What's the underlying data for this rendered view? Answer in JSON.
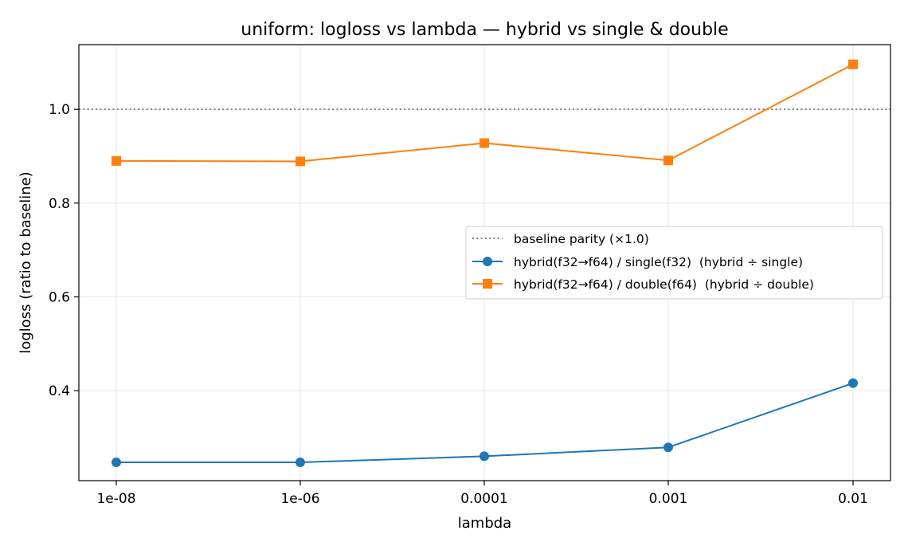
{
  "chart_data": {
    "type": "line",
    "title": "uniform: logloss vs lambda — hybrid vs single & double",
    "xlabel": "lambda",
    "ylabel": "logloss (ratio to baseline)",
    "categories": [
      "1e-08",
      "1e-06",
      "0.0001",
      "0.001",
      "0.01"
    ],
    "ylim": [
      0.208,
      1.138
    ],
    "yticks": [
      0.4,
      0.6,
      0.8,
      1.0
    ],
    "ytick_labels": [
      "0.4",
      "0.6",
      "0.8",
      "1.0"
    ],
    "grid": true,
    "legend_position": "center-right",
    "reference_line": {
      "name": "baseline parity (×1.0)",
      "value": 1.0,
      "style": "dotted",
      "color": "#808080"
    },
    "series": [
      {
        "name": "hybrid(f32→f64) / single(f32)  (hybrid ÷ single)",
        "values": [
          0.247,
          0.247,
          0.26,
          0.279,
          0.416
        ],
        "color": "#1f77b4",
        "marker": "circle"
      },
      {
        "name": "hybrid(f32→f64) / double(f64)  (hybrid ÷ double)",
        "values": [
          0.89,
          0.889,
          0.928,
          0.891,
          1.096
        ],
        "color": "#ff7f0e",
        "marker": "square"
      }
    ]
  }
}
